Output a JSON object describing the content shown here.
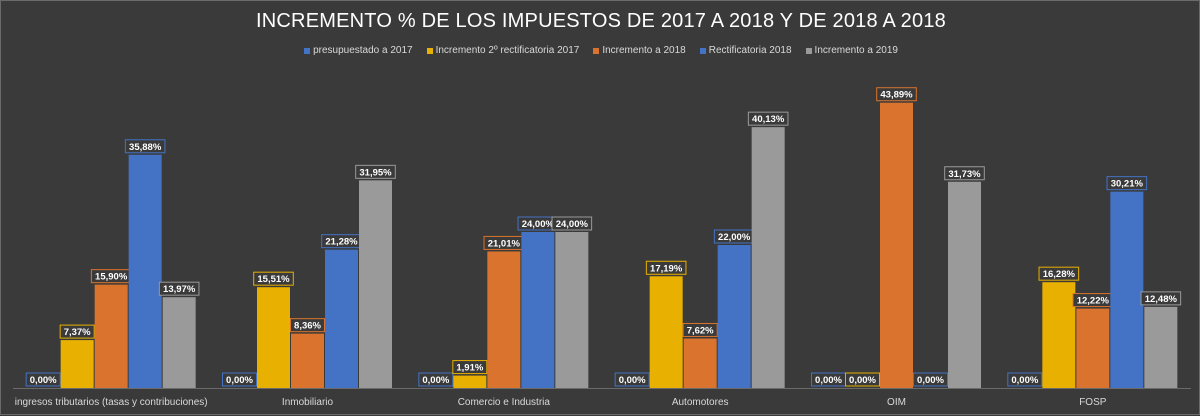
{
  "chart_data": {
    "type": "bar",
    "title": "INCREMENTO % DE LOS IMPUESTOS DE 2017 A 2018 Y DE 2018 A 2018",
    "categories": [
      "ingresos tributarios (tasas y contribuciones)",
      "Inmobiliario",
      "Comercio e Industria",
      "Automotores",
      "OIM",
      "FOSP"
    ],
    "series": [
      {
        "name": "presupuestado a 2017",
        "color": "#4472c4",
        "values": [
          0,
          0,
          0,
          0,
          0,
          0
        ],
        "labels": [
          "0,00%",
          "0,00%",
          "0,00%",
          "0,00%",
          "0,00%",
          "0,00%"
        ]
      },
      {
        "name": "Incremento 2º rectificatoria 2017",
        "color": "#e8b000",
        "values": [
          7.37,
          15.51,
          1.91,
          17.19,
          0,
          16.28
        ],
        "labels": [
          "7,37%",
          "15,51%",
          "1,91%",
          "17,19%",
          "0,00%",
          "16,28%"
        ]
      },
      {
        "name": "Incremento a 2018",
        "color": "#d9732d",
        "values": [
          15.9,
          8.36,
          21.01,
          7.62,
          43.89,
          12.22
        ],
        "labels": [
          "15,90%",
          "8,36%",
          "21,01%",
          "7,62%",
          "43,89%",
          "12,22%"
        ]
      },
      {
        "name": "Rectificatoria 2018",
        "color": "#4472c4",
        "values": [
          35.88,
          21.28,
          24.0,
          22.0,
          0,
          30.21
        ],
        "labels": [
          "35,88%",
          "21,28%",
          "24,00%",
          "22,00%",
          "0,00%",
          "30,21%"
        ]
      },
      {
        "name": "Incremento a 2019",
        "color": "#9a9a9a",
        "values": [
          13.97,
          31.95,
          24.0,
          40.13,
          31.73,
          12.48
        ],
        "labels": [
          "13,97%",
          "31,95%",
          "24,00%",
          "40,13%",
          "31,73%",
          "12,48%"
        ]
      }
    ],
    "ylim": [
      0,
      46
    ],
    "xlabel": "",
    "ylabel": "",
    "grid": false,
    "legend_position": "top"
  }
}
